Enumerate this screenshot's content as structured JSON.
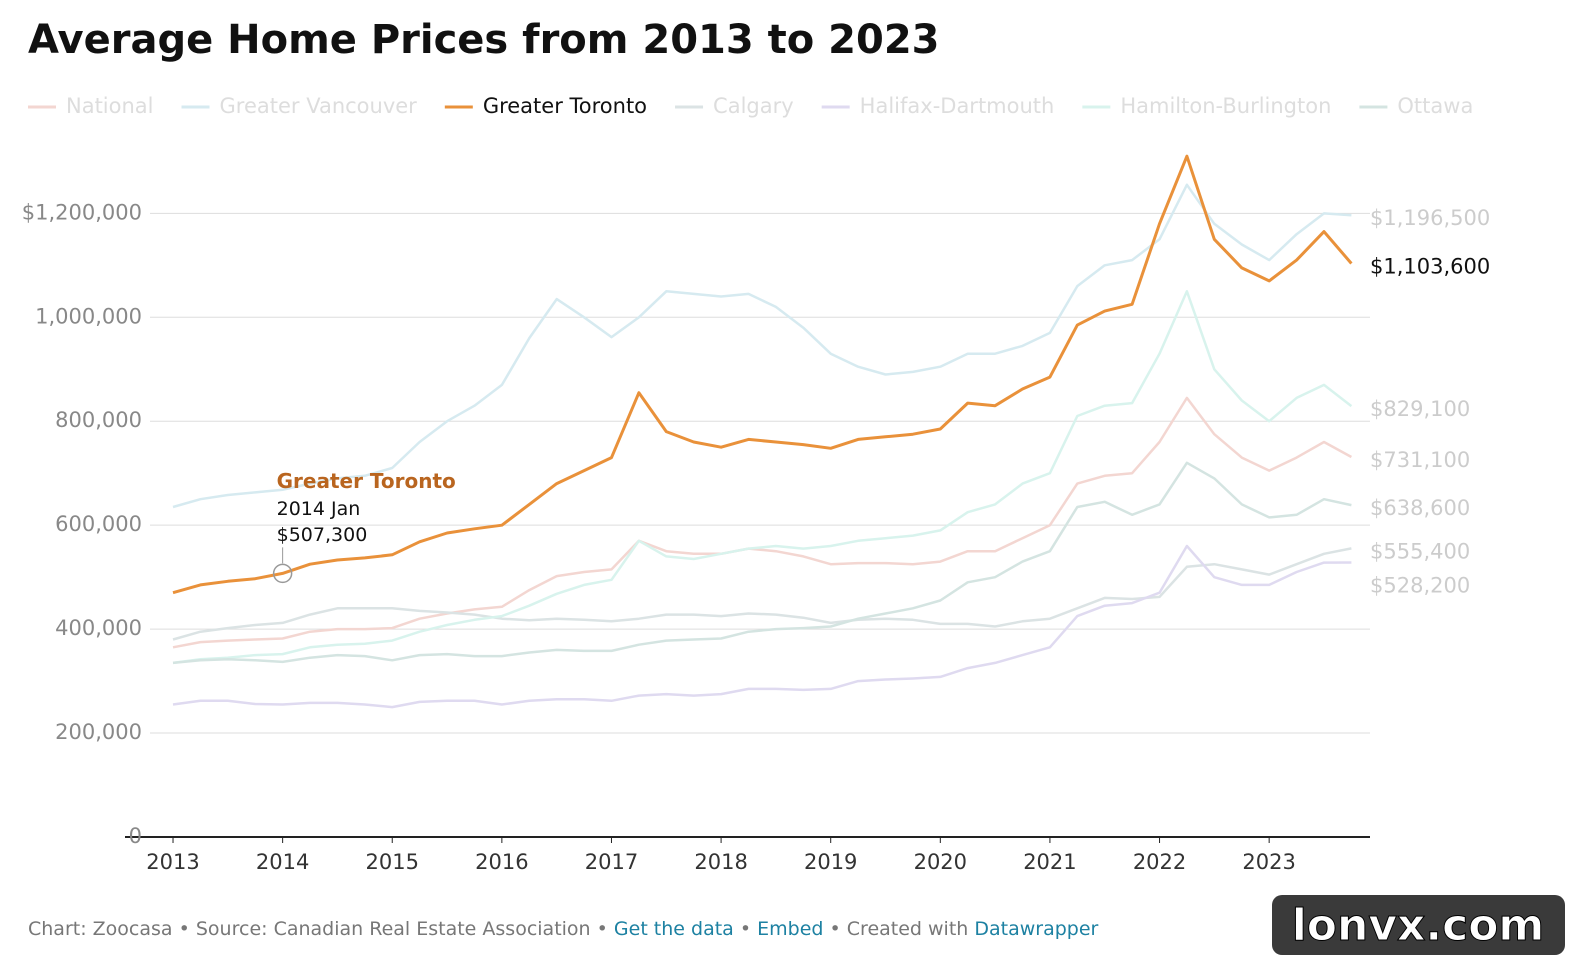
{
  "chart_data": {
    "type": "line",
    "title": "Average Home Prices from 2013 to 2023",
    "highlight": "Greater Toronto",
    "x": [
      2013,
      2013.25,
      2013.5,
      2013.75,
      2014,
      2014.25,
      2014.5,
      2014.75,
      2015,
      2015.25,
      2015.5,
      2015.75,
      2016,
      2016.25,
      2016.5,
      2016.75,
      2017,
      2017.25,
      2017.5,
      2017.75,
      2018,
      2018.25,
      2018.5,
      2018.75,
      2019,
      2019.25,
      2019.5,
      2019.75,
      2020,
      2020.25,
      2020.5,
      2020.75,
      2021,
      2021.25,
      2021.5,
      2021.75,
      2022,
      2022.25,
      2022.5,
      2022.75,
      2023,
      2023.25,
      2023.5,
      2023.75
    ],
    "xlim": [
      2012.79,
      2023.92
    ],
    "xticks": [
      2013,
      2014,
      2015,
      2016,
      2017,
      2018,
      2019,
      2020,
      2021,
      2022,
      2023
    ],
    "ylim": [
      0,
      1320000
    ],
    "yticks": [
      0,
      {
        "value": 200000,
        "label": "200,000"
      },
      {
        "value": 400000,
        "label": "400,000"
      },
      {
        "value": 600000,
        "label": "600,000"
      },
      {
        "value": 800000,
        "label": "800,000"
      },
      {
        "value": 1000000,
        "label": "1,000,000"
      },
      {
        "value": 1200000,
        "label": "$1,200,000"
      }
    ],
    "grid": true,
    "series": [
      {
        "name": "National",
        "color": "#f3d6d1",
        "values": [
          365000,
          375000,
          378000,
          380000,
          382000,
          395000,
          400000,
          400000,
          402000,
          420000,
          430000,
          438000,
          443000,
          475000,
          502000,
          510000,
          515000,
          570000,
          550000,
          545000,
          545000,
          555000,
          550000,
          540000,
          525000,
          527000,
          527000,
          525000,
          530000,
          550000,
          550000,
          575000,
          600000,
          680000,
          695000,
          700000,
          760000,
          845000,
          775000,
          730000,
          705000,
          730000,
          760000,
          731100
        ],
        "value_labels": [
          null,
          null,
          null,
          null,
          null,
          null,
          null,
          null,
          null,
          null,
          null,
          null,
          null,
          null,
          null,
          null,
          null,
          null,
          null,
          null,
          null,
          null,
          null,
          null,
          null,
          null,
          null,
          null,
          null,
          null,
          null,
          null,
          null,
          null,
          null,
          null,
          null,
          null,
          null,
          null,
          null,
          null,
          null,
          "$731,100"
        ]
      },
      {
        "name": "Greater Vancouver",
        "color": "#d6eaf0",
        "values": [
          635000,
          650000,
          658000,
          663000,
          668000,
          680000,
          690000,
          695000,
          710000,
          760000,
          800000,
          830000,
          870000,
          960000,
          1035000,
          1000000,
          962000,
          1000000,
          1050000,
          1045000,
          1040000,
          1045000,
          1020000,
          980000,
          930000,
          905000,
          890000,
          895000,
          905000,
          930000,
          930000,
          945000,
          970000,
          1060000,
          1100000,
          1110000,
          1150000,
          1255000,
          1180000,
          1140000,
          1110000,
          1160000,
          1200000,
          1196500
        ],
        "value_labels": [
          null,
          null,
          null,
          null,
          null,
          null,
          null,
          null,
          null,
          null,
          null,
          null,
          null,
          null,
          null,
          null,
          null,
          null,
          null,
          null,
          null,
          null,
          null,
          null,
          null,
          null,
          null,
          null,
          null,
          null,
          null,
          null,
          null,
          null,
          null,
          null,
          null,
          null,
          null,
          null,
          null,
          null,
          null,
          "$1,196,500"
        ]
      },
      {
        "name": "Greater Toronto",
        "color": "#e9913a",
        "values": [
          470000,
          485000,
          492000,
          497000,
          507300,
          525000,
          533000,
          537000,
          543000,
          568000,
          585000,
          593000,
          600000,
          640000,
          680000,
          705000,
          730000,
          855000,
          780000,
          760000,
          750000,
          765000,
          760000,
          755000,
          748000,
          765000,
          770000,
          775000,
          785000,
          835000,
          830000,
          862000,
          885000,
          985000,
          1012000,
          1025000,
          1180000,
          1310000,
          1150000,
          1095000,
          1070000,
          1110000,
          1165000,
          1103600
        ],
        "value_labels": [
          null,
          null,
          null,
          null,
          null,
          null,
          null,
          null,
          null,
          null,
          null,
          null,
          null,
          null,
          null,
          null,
          null,
          null,
          null,
          null,
          null,
          null,
          null,
          null,
          null,
          null,
          null,
          null,
          null,
          null,
          null,
          null,
          null,
          null,
          null,
          null,
          null,
          null,
          null,
          null,
          null,
          null,
          null,
          "$1,103,600"
        ]
      },
      {
        "name": "Calgary",
        "color": "#dbe3e4",
        "values": [
          380000,
          395000,
          402000,
          408000,
          412000,
          428000,
          440000,
          440000,
          440000,
          435000,
          432000,
          428000,
          420000,
          417000,
          420000,
          418000,
          415000,
          420000,
          428000,
          428000,
          425000,
          430000,
          428000,
          422000,
          412000,
          418000,
          420000,
          418000,
          410000,
          410000,
          405000,
          415000,
          420000,
          440000,
          460000,
          458000,
          462000,
          520000,
          525000,
          515000,
          505000,
          525000,
          545000,
          555400
        ],
        "value_labels": [
          null,
          null,
          null,
          null,
          null,
          null,
          null,
          null,
          null,
          null,
          null,
          null,
          null,
          null,
          null,
          null,
          null,
          null,
          null,
          null,
          null,
          null,
          null,
          null,
          null,
          null,
          null,
          null,
          null,
          null,
          null,
          null,
          null,
          null,
          null,
          null,
          null,
          null,
          null,
          null,
          null,
          null,
          null,
          "$555,400"
        ]
      },
      {
        "name": "Halifax-Dartmouth",
        "color": "#dfdaf0",
        "values": [
          255000,
          262000,
          262000,
          256000,
          255000,
          258000,
          258000,
          255000,
          250000,
          260000,
          262000,
          262000,
          255000,
          262000,
          265000,
          265000,
          262000,
          272000,
          275000,
          272000,
          275000,
          285000,
          285000,
          283000,
          285000,
          300000,
          303000,
          305000,
          308000,
          325000,
          335000,
          350000,
          365000,
          425000,
          445000,
          450000,
          470000,
          560000,
          500000,
          485000,
          485000,
          510000,
          528000,
          528200
        ],
        "value_labels": [
          null,
          null,
          null,
          null,
          null,
          null,
          null,
          null,
          null,
          null,
          null,
          null,
          null,
          null,
          null,
          null,
          null,
          null,
          null,
          null,
          null,
          null,
          null,
          null,
          null,
          null,
          null,
          null,
          null,
          null,
          null,
          null,
          null,
          null,
          null,
          null,
          null,
          null,
          null,
          null,
          null,
          null,
          null,
          "$528,200"
        ]
      },
      {
        "name": "Hamilton-Burlington",
        "color": "#d8f3ed",
        "values": [
          335000,
          342000,
          345000,
          350000,
          352000,
          365000,
          370000,
          372000,
          378000,
          395000,
          408000,
          418000,
          425000,
          445000,
          468000,
          485000,
          495000,
          570000,
          540000,
          535000,
          545000,
          555000,
          560000,
          555000,
          560000,
          570000,
          575000,
          580000,
          590000,
          625000,
          640000,
          680000,
          700000,
          810000,
          830000,
          835000,
          930000,
          1050000,
          900000,
          840000,
          800000,
          845000,
          870000,
          829100
        ],
        "value_labels": [
          null,
          null,
          null,
          null,
          null,
          null,
          null,
          null,
          null,
          null,
          null,
          null,
          null,
          null,
          null,
          null,
          null,
          null,
          null,
          null,
          null,
          null,
          null,
          null,
          null,
          null,
          null,
          null,
          null,
          null,
          null,
          null,
          null,
          null,
          null,
          null,
          null,
          null,
          null,
          null,
          null,
          null,
          null,
          "$829,100"
        ]
      },
      {
        "name": "Ottawa",
        "color": "#d4e4e1",
        "values": [
          335000,
          340000,
          342000,
          340000,
          337000,
          345000,
          350000,
          348000,
          340000,
          350000,
          352000,
          348000,
          348000,
          355000,
          360000,
          358000,
          358000,
          370000,
          378000,
          380000,
          382000,
          395000,
          400000,
          402000,
          405000,
          420000,
          430000,
          440000,
          455000,
          490000,
          500000,
          530000,
          550000,
          635000,
          645000,
          620000,
          640000,
          720000,
          690000,
          640000,
          615000,
          620000,
          650000,
          638600
        ],
        "value_labels": [
          null,
          null,
          null,
          null,
          null,
          null,
          null,
          null,
          null,
          null,
          null,
          null,
          null,
          null,
          null,
          null,
          null,
          null,
          null,
          null,
          null,
          null,
          null,
          null,
          null,
          null,
          null,
          null,
          null,
          null,
          null,
          null,
          null,
          null,
          null,
          null,
          null,
          null,
          null,
          null,
          null,
          null,
          null,
          "$638,600"
        ]
      }
    ],
    "annotation": {
      "series": 2,
      "index": 4,
      "title": "Greater Toronto",
      "date": "2014 Jan",
      "value_label": "$507,300"
    }
  },
  "footer": {
    "credit": "Chart: Zoocasa",
    "source": "Source: Canadian Real Estate Association",
    "links": [
      "Get the data",
      "Embed"
    ],
    "created": "Created with",
    "tool": "Datawrapper",
    "separator": "•"
  },
  "watermark": "lonvx.com"
}
